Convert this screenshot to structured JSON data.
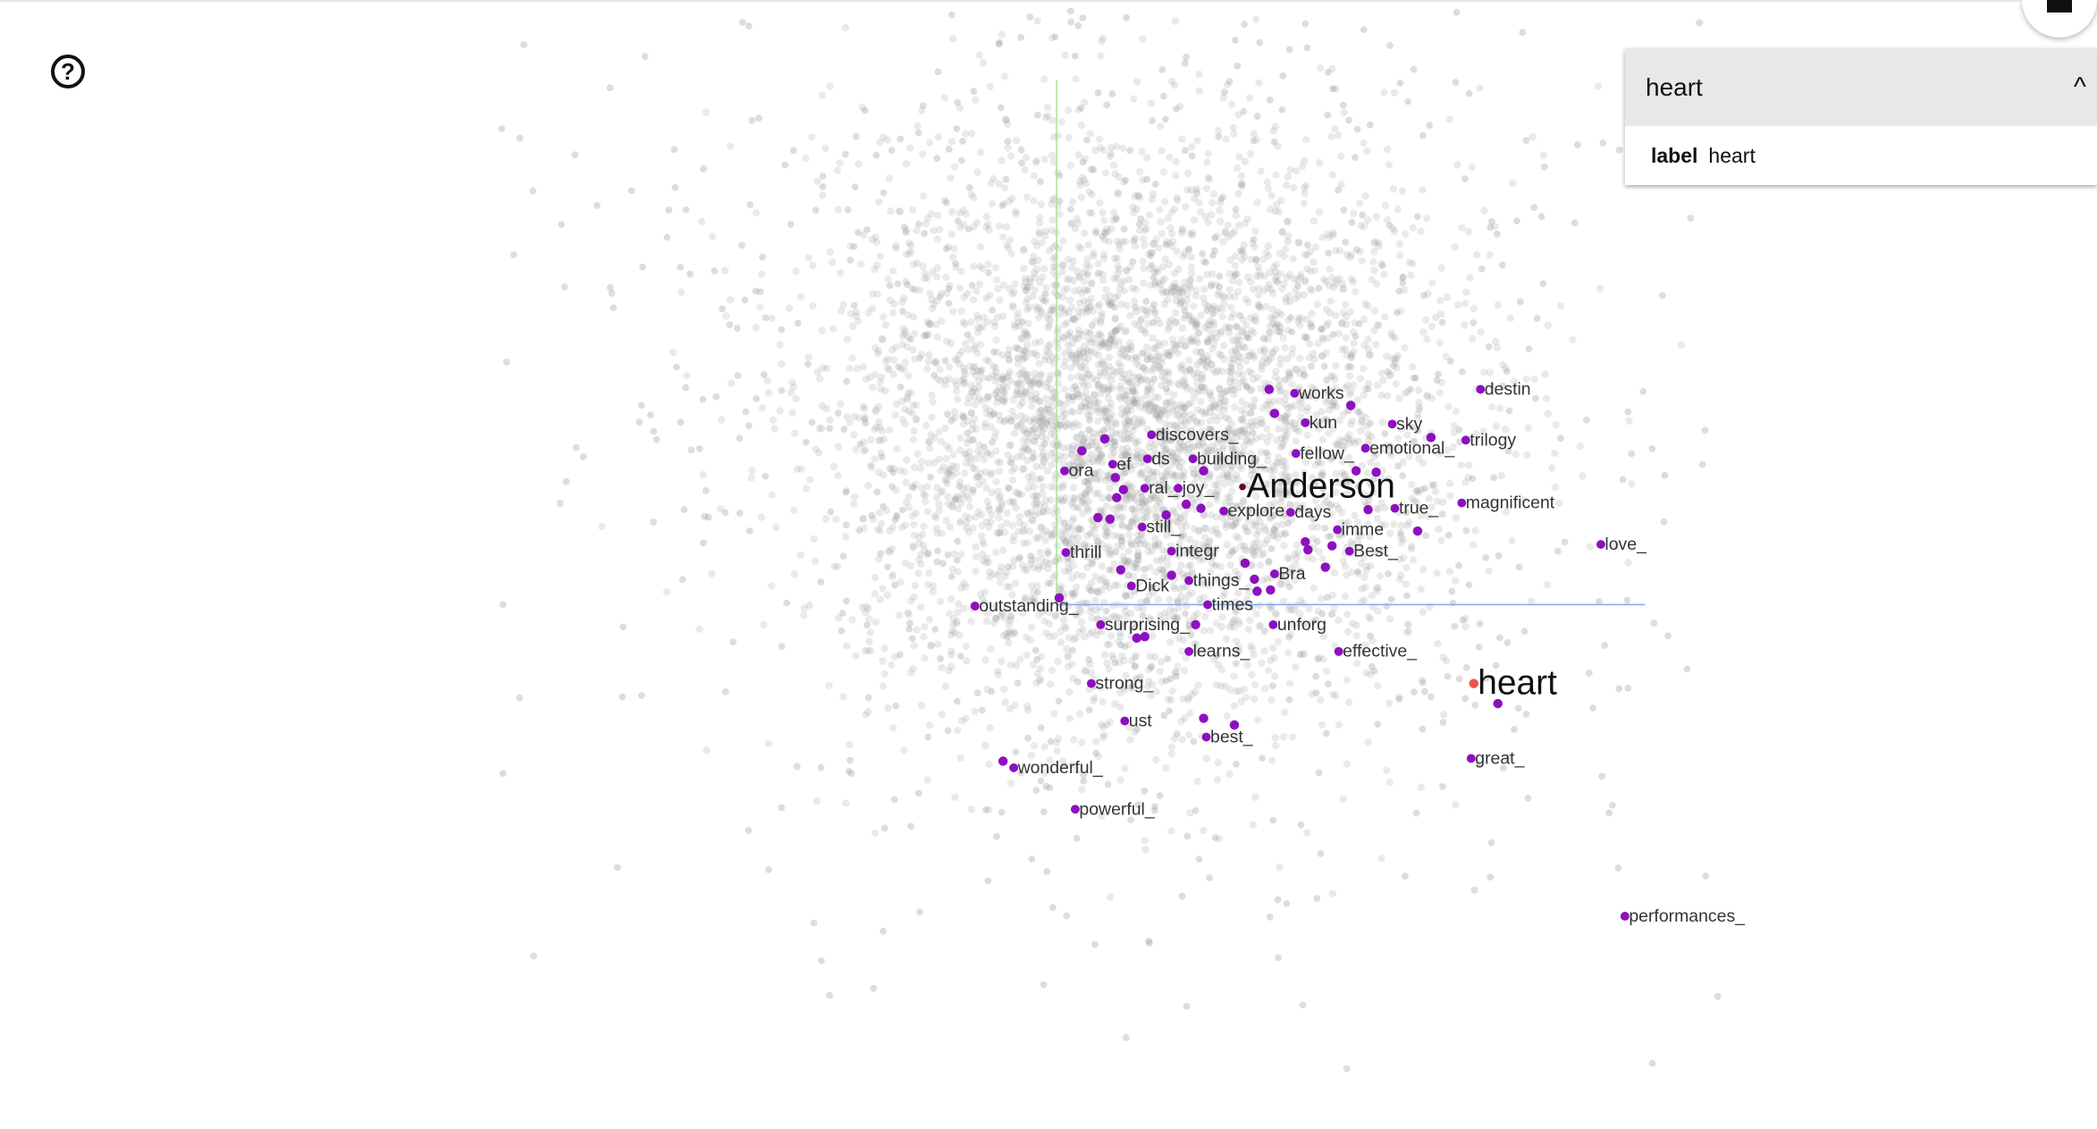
{
  "help": {
    "icon": "help-circle-icon",
    "glyph": "?"
  },
  "home": {
    "icon": "home-icon"
  },
  "inspector": {
    "title": "heart",
    "collapse_icon": "chevron-up-icon",
    "collapse_glyph": "^",
    "field_key": "label",
    "field_value": "heart"
  },
  "colors": {
    "cloud": "#9e9e9e",
    "neighbor": "#8e0fbf",
    "selected": "#ef5350",
    "x_axis": "#7ea9f2",
    "y_axis": "#a6e38c"
  },
  "points": {
    "selected": "heart",
    "highlighted": "Anderson",
    "neighbors": [
      "works",
      "destin",
      "kun",
      "sky",
      "discovers_",
      "emotional_",
      "trilogy",
      "fellow_",
      "ds",
      "building_",
      "ora",
      "ef",
      "ral_",
      "joy_",
      "true_",
      "magnificent",
      "explore",
      "days",
      "still_",
      "imme",
      "love_",
      "thrill",
      "integr",
      "Best_",
      "Bra",
      "Dick",
      "things_",
      "outstanding_",
      "times",
      "surprising_",
      "unforg",
      "learns_",
      "effective_",
      "strong_",
      "ust",
      "best_",
      "great_",
      "wonderful_",
      "powerful_",
      "performances_"
    ]
  }
}
